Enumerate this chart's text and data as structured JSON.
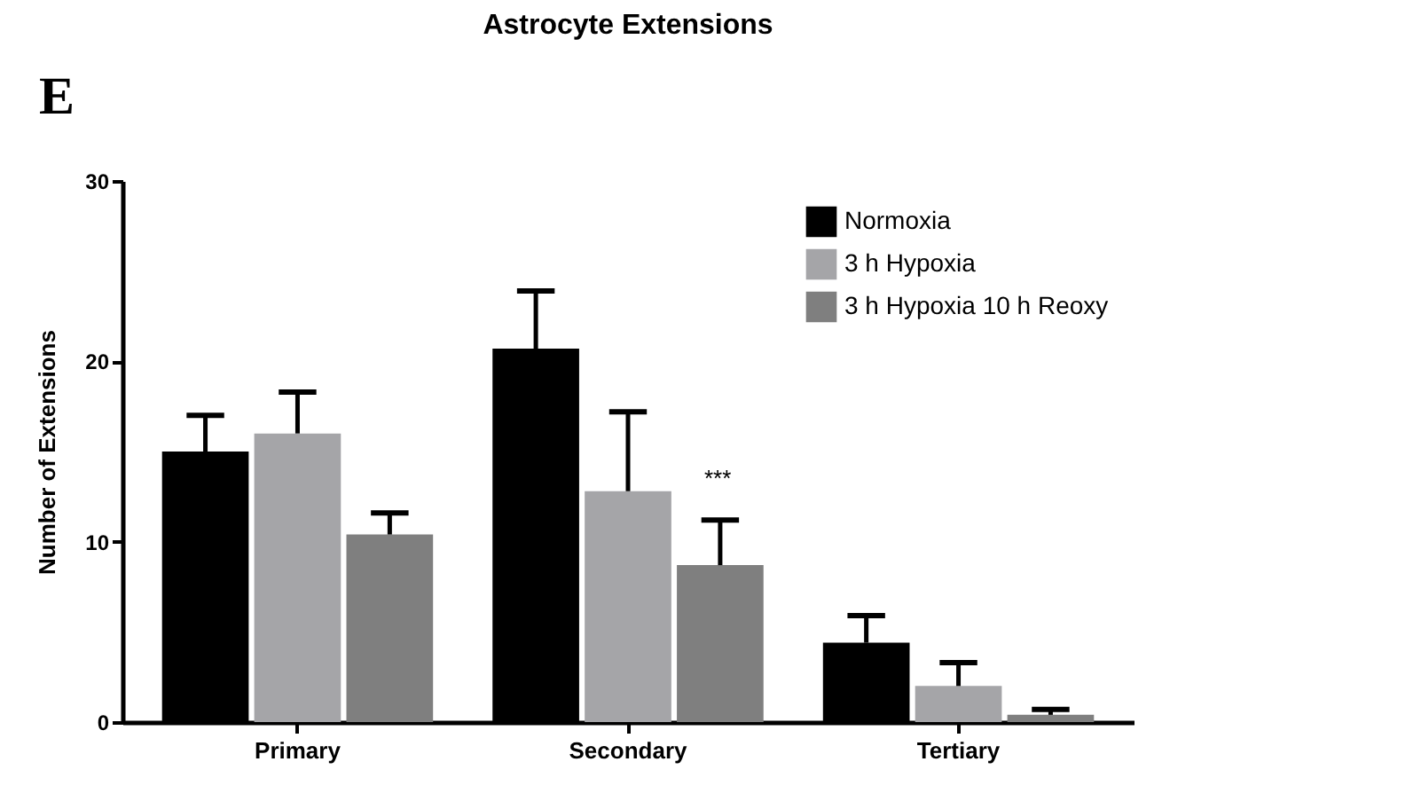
{
  "chart_data": {
    "type": "bar",
    "title": "Astrocyte Extensions",
    "ylabel": "Number of Extensions",
    "categories": [
      "Primary",
      "Secondary",
      "Tertiary"
    ],
    "series": [
      {
        "name": "Normoxia",
        "color": "#000000",
        "values": [
          15.0,
          20.7,
          4.4
        ],
        "errors": [
          [
            15.0,
            17.0
          ],
          [
            20.7,
            23.9
          ],
          [
            4.4,
            5.9
          ]
        ]
      },
      {
        "name": "3 h Hypoxia",
        "color": "#a5a5a8",
        "values": [
          16.0,
          12.8,
          2.0
        ],
        "errors": [
          [
            16.0,
            18.3
          ],
          [
            12.8,
            17.2
          ],
          [
            2.0,
            3.3
          ]
        ]
      },
      {
        "name": "3 h Hypoxia 10 h Reoxy",
        "color": "#7f7f7f",
        "values": [
          10.4,
          8.7,
          0.4
        ],
        "errors": [
          [
            10.4,
            11.6
          ],
          [
            8.7,
            11.2
          ],
          [
            0.4,
            0.7
          ]
        ]
      }
    ],
    "annotations": [
      "E",
      "***"
    ],
    "ylim": [
      0,
      30
    ],
    "yticks": [
      0,
      10,
      20,
      30
    ],
    "grid": false,
    "legend": "top right"
  }
}
